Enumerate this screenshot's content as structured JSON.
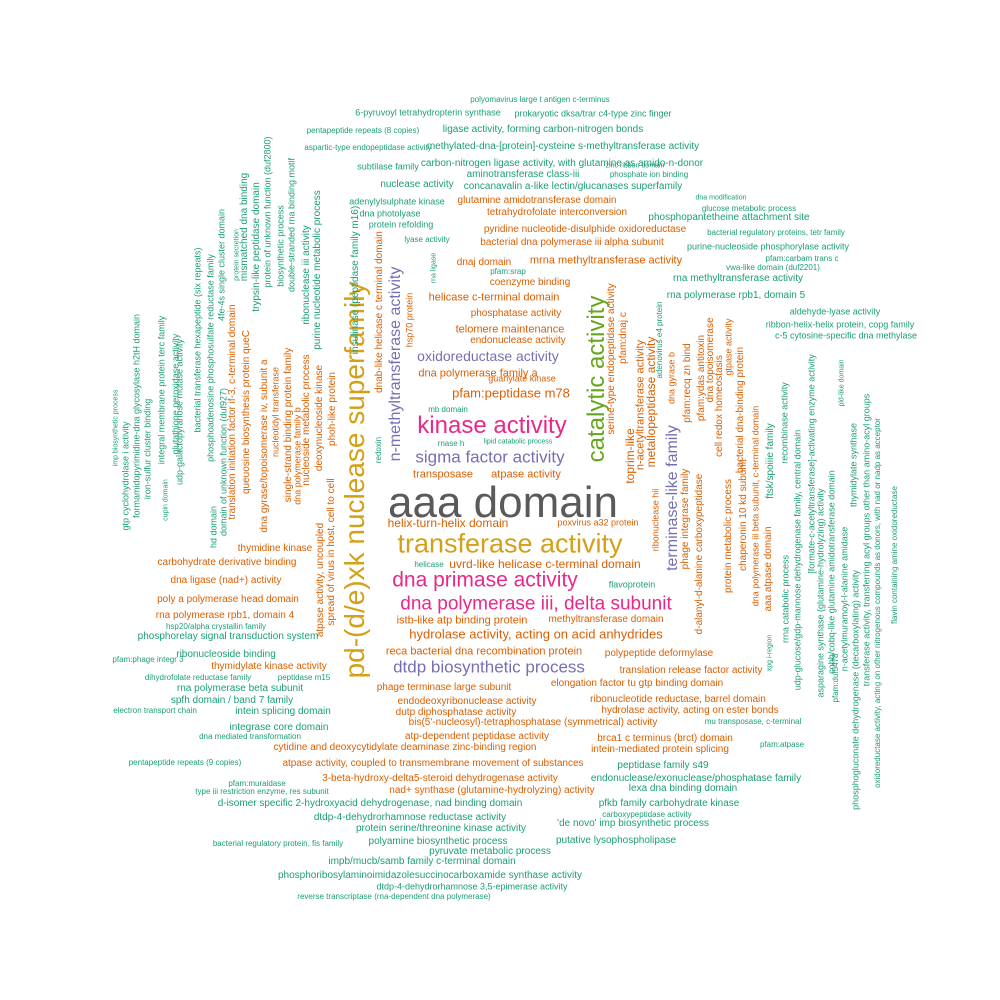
{
  "palette": {
    "grey": "#5a5a5a",
    "gold": "#d4a017",
    "pink": "#e7298a",
    "purple": "#7570b3",
    "green": "#66a61e",
    "orange": "#d95f02",
    "teal": "#1b9e77"
  },
  "words": [
    {
      "t": "aaa domain",
      "c": "grey"
    },
    {
      "t": "pd-(d/e)xk nuclease superfamily",
      "c": "gold"
    },
    {
      "t": "transferase activity",
      "c": "gold"
    },
    {
      "t": "catalytic activity",
      "c": "green"
    },
    {
      "t": "kinase activity",
      "c": "pink"
    },
    {
      "t": "dna primase activity",
      "c": "pink"
    },
    {
      "t": "dna polymerase iii, delta subunit",
      "c": "pink"
    },
    {
      "t": "dtdp biosynthetic process",
      "c": "purple"
    },
    {
      "t": "sigma factor activity",
      "c": "purple"
    },
    {
      "t": "oxidoreductase activity",
      "c": "purple"
    },
    {
      "t": "n-methyltransferase activity",
      "c": "purple"
    },
    {
      "t": "terminase-like family",
      "c": "purple"
    },
    {
      "t": "hydrolase activity, acting on acid anhydrides",
      "c": "orange"
    },
    {
      "t": "pfam:peptidase m78",
      "c": "orange"
    },
    {
      "t": "helix-turn-helix domain",
      "c": "orange"
    },
    {
      "t": "uvrd-like helicase c-terminal domain",
      "c": "orange"
    },
    {
      "t": "istb-like atp binding protein",
      "c": "orange"
    },
    {
      "t": "methyltransferase domain",
      "c": "orange"
    },
    {
      "t": "dna polymerase family a",
      "c": "orange"
    },
    {
      "t": "transposase",
      "c": "orange"
    },
    {
      "t": "atpase activity",
      "c": "orange"
    },
    {
      "t": "guanylate kinase",
      "c": "orange"
    },
    {
      "t": "mb domain",
      "c": "teal"
    },
    {
      "t": "rnase h",
      "c": "teal"
    },
    {
      "t": "lipid catabolic process",
      "c": "teal"
    },
    {
      "t": "telomere maintenance",
      "c": "orange"
    },
    {
      "t": "endonuclease activity",
      "c": "orange"
    },
    {
      "t": "helicase c-terminal domain",
      "c": "orange"
    },
    {
      "t": "phosphatase activity",
      "c": "orange"
    },
    {
      "t": "coenzyme binding",
      "c": "orange"
    },
    {
      "t": "mrna methyltransferase activity",
      "c": "orange"
    },
    {
      "t": "dnaj domain",
      "c": "orange"
    },
    {
      "t": "pfam:srap",
      "c": "teal"
    },
    {
      "t": "bacterial dna polymerase iii alpha subunit",
      "c": "orange"
    },
    {
      "t": "pyridine nucleotide-disulphide oxidoreductase",
      "c": "orange"
    },
    {
      "t": "tetrahydrofolate interconversion",
      "c": "orange"
    },
    {
      "t": "glutamine amidotransferase domain",
      "c": "orange"
    },
    {
      "t": "concanavalin a-like lectin/glucanases superfamily",
      "c": "teal"
    },
    {
      "t": "nuclease activity",
      "c": "teal"
    },
    {
      "t": "aminotransferase class-iii",
      "c": "teal"
    },
    {
      "t": "phosphate ion binding",
      "c": "teal"
    },
    {
      "t": "carbon-nitrogen ligase activity, with glutamine as amido-n-donor",
      "c": "teal"
    },
    {
      "t": "subtilase family",
      "c": "teal"
    },
    {
      "t": "methylated-dna-[protein]-cysteine s-methyltransferase activity",
      "c": "teal"
    },
    {
      "t": "aspartic-type endopeptidase activity",
      "c": "teal"
    },
    {
      "t": "ligase activity, forming carbon-nitrogen bonds",
      "c": "teal"
    },
    {
      "t": "pentapeptide repeats (8 copies)",
      "c": "teal"
    },
    {
      "t": "6-pyruvoyl tetrahydropterin synthase",
      "c": "teal"
    },
    {
      "t": "prokaryotic dksa/trar c4-type zinc finger",
      "c": "teal"
    },
    {
      "t": "polyomavirus large t antigen c-terminus",
      "c": "teal"
    },
    {
      "t": "zinc ribbon domain",
      "c": "teal"
    },
    {
      "t": "dna modification",
      "c": "teal"
    },
    {
      "t": "glucose metabolic process",
      "c": "teal"
    },
    {
      "t": "phosphopantetheine attachment site",
      "c": "teal"
    },
    {
      "t": "bacterial regulatory proteins, tetr family",
      "c": "teal"
    },
    {
      "t": "purine-nucleoside phosphorylase activity",
      "c": "teal"
    },
    {
      "t": "pfam:carbam trans c",
      "c": "teal"
    },
    {
      "t": "vwa-like domain (duf2201)",
      "c": "teal"
    },
    {
      "t": "rna methyltransferase activity",
      "c": "teal"
    },
    {
      "t": "rna polymerase rpb1, domain 5",
      "c": "teal"
    },
    {
      "t": "aldehyde-lyase activity",
      "c": "teal"
    },
    {
      "t": "ribbon-helix-helix protein, copg family",
      "c": "teal"
    },
    {
      "t": "c-5 cytosine-specific dna methylase",
      "c": "teal"
    },
    {
      "t": "adenylylsulphate kinase",
      "c": "teal"
    },
    {
      "t": "dna photolyase",
      "c": "teal"
    },
    {
      "t": "protein refolding",
      "c": "teal"
    },
    {
      "t": "lyase activity",
      "c": "teal"
    },
    {
      "t": "helicase",
      "c": "teal"
    },
    {
      "t": "flavoprotein",
      "c": "teal"
    },
    {
      "t": "poxvirus a32 protein",
      "c": "orange"
    },
    {
      "t": "thymidine kinase",
      "c": "orange"
    },
    {
      "t": "carbohydrate derivative binding",
      "c": "orange"
    },
    {
      "t": "dna ligase (nad+) activity",
      "c": "orange"
    },
    {
      "t": "poly a polymerase head domain",
      "c": "orange"
    },
    {
      "t": "rna polymerase rpb1, domain 4",
      "c": "orange"
    },
    {
      "t": "hsp20/alpha crystallin family",
      "c": "teal"
    },
    {
      "t": "phosphorelay signal transduction system",
      "c": "teal"
    },
    {
      "t": "pfam:phage integr 3",
      "c": "teal"
    },
    {
      "t": "ribonucleoside binding",
      "c": "teal"
    },
    {
      "t": "thymidylate kinase activity",
      "c": "orange"
    },
    {
      "t": "dihydrofolate reductase family",
      "c": "teal"
    },
    {
      "t": "peptidase m15",
      "c": "teal"
    },
    {
      "t": "rna polymerase beta subunit",
      "c": "teal"
    },
    {
      "t": "spfh domain / band 7 family",
      "c": "teal"
    },
    {
      "t": "electron transport chain",
      "c": "teal"
    },
    {
      "t": "intein splicing domain",
      "c": "teal"
    },
    {
      "t": "integrase core domain",
      "c": "teal"
    },
    {
      "t": "dna mediated transformation",
      "c": "teal"
    },
    {
      "t": "reca bacterial dna recombination protein",
      "c": "orange"
    },
    {
      "t": "polypeptide deformylase",
      "c": "orange"
    },
    {
      "t": "translation release factor activity",
      "c": "orange"
    },
    {
      "t": "phage terminase large subunit",
      "c": "orange"
    },
    {
      "t": "elongation factor tu gtp binding domain",
      "c": "orange"
    },
    {
      "t": "endodeoxyribonuclease activity",
      "c": "orange"
    },
    {
      "t": "ribonucleotide reductase, barrel domain",
      "c": "orange"
    },
    {
      "t": "dutp diphosphatase activity",
      "c": "orange"
    },
    {
      "t": "hydrolase activity, acting on ester bonds",
      "c": "orange"
    },
    {
      "t": "bis(5'-nucleosyl)-tetraphosphatase (symmetrical) activity",
      "c": "orange"
    },
    {
      "t": "mu transposase, c-terminal",
      "c": "teal"
    },
    {
      "t": "atp-dependent peptidase activity",
      "c": "orange"
    },
    {
      "t": "brca1 c terminus (brct) domain",
      "c": "orange"
    },
    {
      "t": "pfam:atpase",
      "c": "teal"
    },
    {
      "t": "cytidine and deoxycytidylate deaminase zinc-binding region",
      "c": "orange"
    },
    {
      "t": "intein-mediated protein splicing",
      "c": "orange"
    },
    {
      "t": "pentapeptide repeats (9 copies)",
      "c": "teal"
    },
    {
      "t": "atpase activity, coupled to transmembrane movement of substances",
      "c": "orange"
    },
    {
      "t": "peptidase family s49",
      "c": "teal"
    },
    {
      "t": "pfam:muraidase",
      "c": "teal"
    },
    {
      "t": "3-beta-hydroxy-delta5-steroid dehydrogenase activity",
      "c": "orange"
    },
    {
      "t": "endonuclease/exonuclease/phosphatase family",
      "c": "teal"
    },
    {
      "t": "type iii restriction enzyme, res subunit",
      "c": "teal"
    },
    {
      "t": "nad+ synthase (glutamine-hydrolyzing) activity",
      "c": "orange"
    },
    {
      "t": "lexa dna binding domain",
      "c": "teal"
    },
    {
      "t": "d-isomer specific 2-hydroxyacid dehydrogenase, nad binding domain",
      "c": "teal"
    },
    {
      "t": "pfkb family carbohydrate kinase",
      "c": "teal"
    },
    {
      "t": "dtdp-4-dehydrorhamnose reductase activity",
      "c": "teal"
    },
    {
      "t": "carboxypeptidase activity",
      "c": "teal"
    },
    {
      "t": "protein serine/threonine kinase activity",
      "c": "teal"
    },
    {
      "t": "'de novo' imp biosynthetic process",
      "c": "teal"
    },
    {
      "t": "bacterial regulatory protein, fis family",
      "c": "teal"
    },
    {
      "t": "polyamine biosynthetic process",
      "c": "teal"
    },
    {
      "t": "putative lysophospholipase",
      "c": "teal"
    },
    {
      "t": "pyruvate metabolic process",
      "c": "teal"
    },
    {
      "t": "impb/mucb/samb family c-terminal domain",
      "c": "teal"
    },
    {
      "t": "phosphoribosylaminoimidazolesuccinocarboxamide synthase activity",
      "c": "teal"
    },
    {
      "t": "dtdp-4-dehydrorhamnose 3,5-epimerase activity",
      "c": "teal"
    },
    {
      "t": "reverse transcriptase (rna-dependent dna polymerase)",
      "c": "teal"
    }
  ],
  "vertical_words": [
    {
      "t": "dnab-like helicase c terminal domain",
      "c": "orange"
    },
    {
      "t": "insulinase (peptidase family m16)",
      "c": "teal"
    },
    {
      "t": "redoxin",
      "c": "teal"
    },
    {
      "t": "phoh-like protein",
      "c": "orange"
    },
    {
      "t": "deoxynucleoside kinase",
      "c": "orange"
    },
    {
      "t": "spread of virus in host, cell to cell",
      "c": "orange"
    },
    {
      "t": "atpase activity, uncoupled",
      "c": "orange"
    },
    {
      "t": "purine nucleotide metabolic process",
      "c": "teal"
    },
    {
      "t": "ribonuclease iii activity",
      "c": "teal"
    },
    {
      "t": "hsp70 protein",
      "c": "orange"
    },
    {
      "t": "rna ligase",
      "c": "teal"
    },
    {
      "t": "nucleoside metabolic process",
      "c": "orange"
    },
    {
      "t": "single-strand binding protein family",
      "c": "orange"
    },
    {
      "t": "dna polymerase family b",
      "c": "orange"
    },
    {
      "t": "nucleotidyl transferase",
      "c": "orange"
    },
    {
      "t": "dna gyrase/topoisomerase iv, subunit a",
      "c": "orange"
    },
    {
      "t": "queuosine biosynthesis protein queC",
      "c": "orange"
    },
    {
      "t": "translation initiation factor if-3, c-terminal domain",
      "c": "orange"
    },
    {
      "t": "phosphoadenosine phosphosulfate reductase family",
      "c": "teal"
    },
    {
      "t": "bacterial transferase hexapeptide (six repeats)",
      "c": "teal"
    },
    {
      "t": "domain of unknown function (duf927)",
      "c": "teal"
    },
    {
      "t": "hd domain",
      "c": "teal"
    },
    {
      "t": "4fe-4s single cluster domain",
      "c": "teal"
    },
    {
      "t": "protein secretion",
      "c": "teal"
    },
    {
      "t": "mismatched dna binding",
      "c": "teal"
    },
    {
      "t": "trypsin-like peptidase domain",
      "c": "teal"
    },
    {
      "t": "protein of unknown function (duf2800)",
      "c": "teal"
    },
    {
      "t": "biosynthetic process",
      "c": "teal"
    },
    {
      "t": "double-stranded rna binding motif",
      "c": "teal"
    },
    {
      "t": "imp biosynthetic process",
      "c": "teal"
    },
    {
      "t": "gtp cyclohydrolase i activity",
      "c": "teal"
    },
    {
      "t": "formamidopyrimidine-dna glycosylase h2tH domain",
      "c": "teal"
    },
    {
      "t": "iron-sulfur cluster binding",
      "c": "teal"
    },
    {
      "t": "integral membrane protein terc family",
      "c": "teal"
    },
    {
      "t": "cupin domain",
      "c": "teal"
    },
    {
      "t": "glutathione peroxidase activity",
      "c": "teal"
    },
    {
      "t": "udp-galactopyranose mutase activity",
      "c": "teal"
    },
    {
      "t": "serine-type endopeptidase activity",
      "c": "orange"
    },
    {
      "t": "toprim-like",
      "c": "orange"
    },
    {
      "t": "pfam:dnaj c",
      "c": "orange"
    },
    {
      "t": "n-acetyltransferase activity",
      "c": "orange"
    },
    {
      "t": "metallopeptidase activity",
      "c": "orange"
    },
    {
      "t": "adenovirus e4 protein",
      "c": "teal"
    },
    {
      "t": "dna gyrase b",
      "c": "orange"
    },
    {
      "t": "pfam:recq zn bind",
      "c": "orange"
    },
    {
      "t": "pfam:ydas antitoxin",
      "c": "orange"
    },
    {
      "t": "cell redox homeostasis",
      "c": "orange"
    },
    {
      "t": "dna topoisomerase",
      "c": "orange"
    },
    {
      "t": "gtpase activity",
      "c": "orange"
    },
    {
      "t": "bacterial dna-binding protein",
      "c": "orange"
    },
    {
      "t": "phage integrase family",
      "c": "orange"
    },
    {
      "t": "ribonuclease hii",
      "c": "orange"
    },
    {
      "t": "d-alanyl-d-alanine carboxypeptidase",
      "c": "orange"
    },
    {
      "t": "protein metabolic process",
      "c": "orange"
    },
    {
      "t": "chaperonin 10 kd subunit",
      "c": "orange"
    },
    {
      "t": "dna polymerase iii beta subunit, c-terminal domain",
      "c": "orange"
    },
    {
      "t": "aaa atpase domain",
      "c": "orange"
    },
    {
      "t": "ftsk/spoiiie family",
      "c": "teal"
    },
    {
      "t": "xpg i-region",
      "c": "teal"
    },
    {
      "t": "recombinase activity",
      "c": "teal"
    },
    {
      "t": "rrna catabolic process",
      "c": "teal"
    },
    {
      "t": "udp-glucose/gdp-mannose dehydrogenase family, central domain",
      "c": "teal"
    },
    {
      "t": "[formate-c-acetyltransferase]-activating enzyme activity",
      "c": "teal"
    },
    {
      "t": "asparagine synthase (glutamine-hydrolyzing) activity",
      "c": "teal"
    },
    {
      "t": "cobb/cobq-like glutamine amidotransferase domain",
      "c": "teal"
    },
    {
      "t": "pfam:duf5478",
      "c": "teal"
    },
    {
      "t": "n-acetylmuramoyl-l-alanine amidase",
      "c": "teal"
    },
    {
      "t": "thymidylate synthase",
      "c": "teal"
    },
    {
      "t": "phosphogluconate dehydrogenase (decarboxylating) activity",
      "c": "teal"
    },
    {
      "t": "transferase activity, transferring acyl groups other than amino-acyl groups",
      "c": "teal"
    },
    {
      "t": "oxidoreductase activity, acting on other nitrogenous compounds as donors, with nad or nadp as acceptor",
      "c": "teal"
    },
    {
      "t": "flavin containing amine oxidoreductase",
      "c": "teal"
    },
    {
      "t": "pld-like domain",
      "c": "teal"
    }
  ]
}
